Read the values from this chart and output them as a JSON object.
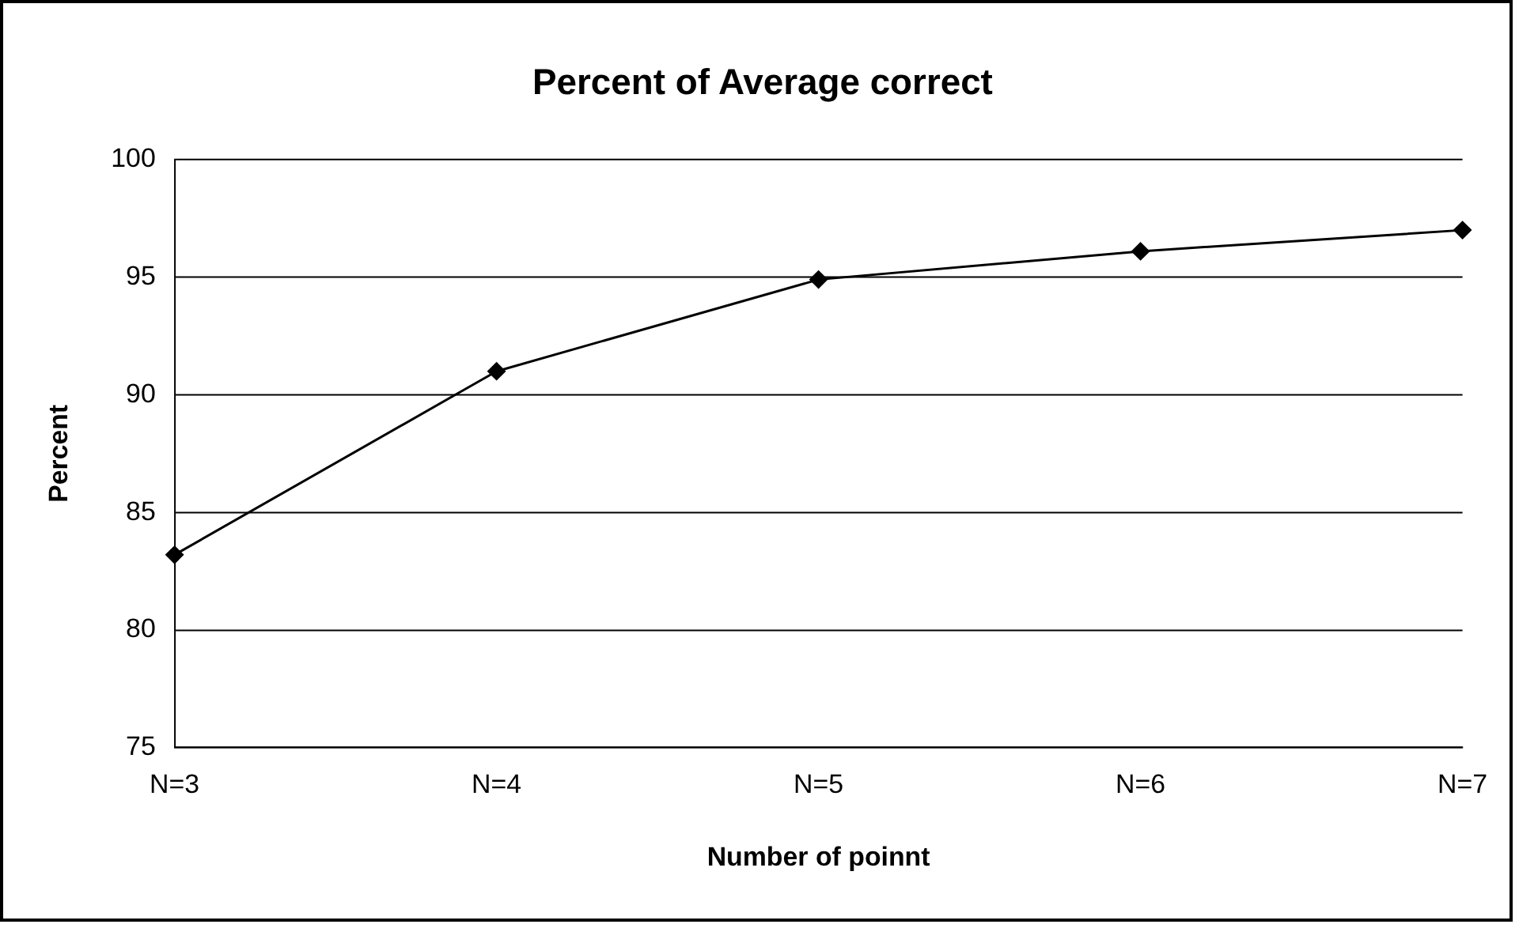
{
  "chart_data": {
    "type": "line",
    "title": "Percent of Average correct",
    "xlabel": "Number of poinnt",
    "ylabel": "Percent",
    "categories": [
      "N=3",
      "N=4",
      "N=5",
      "N=6",
      "N=7"
    ],
    "series": [
      {
        "color": "#000000",
        "values": [
          83.2,
          91.0,
          94.9,
          96.1,
          97.0
        ]
      }
    ],
    "ylim": [
      75,
      100
    ],
    "yticks": [
      75,
      80,
      85,
      90,
      95,
      100
    ],
    "grid": "y",
    "legend": false,
    "marker": "diamond",
    "line_style": "solid"
  }
}
